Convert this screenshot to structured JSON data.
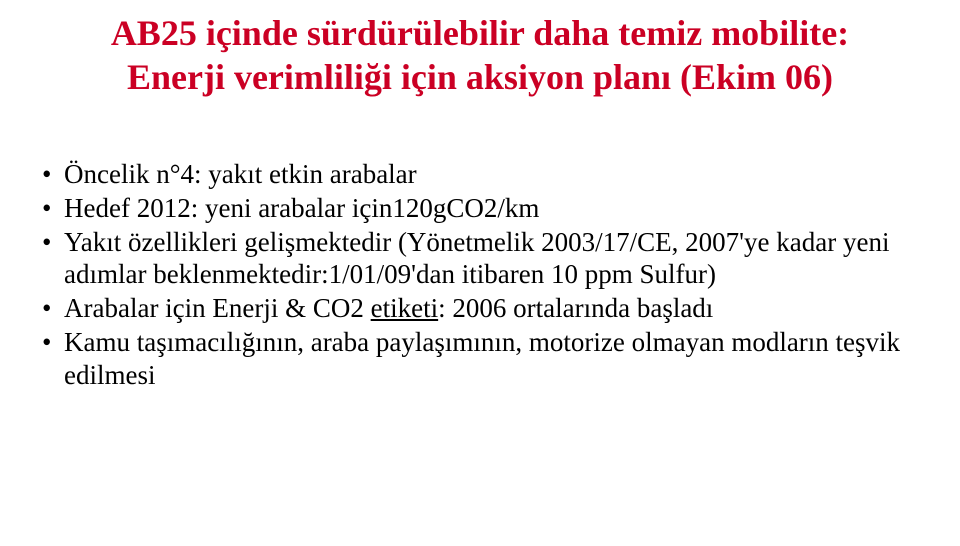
{
  "title": {
    "line1": "AB25 içinde sürdürülebilir daha temiz mobilite:",
    "line2": "Enerji verimliliği için aksiyon planı (Ekim 06)",
    "color": "#cb0024",
    "fontsize_pt": 36
  },
  "bullets": [
    {
      "text": "Öncelik  n°4: yakıt etkin arabalar"
    },
    {
      "text": "Hedef 2012: yeni arabalar için120gCO2/km"
    },
    {
      "text": "Yakıt özellikleri gelişmektedir (Yönetmelik 2003/17/CE, 2007'ye kadar yeni adımlar beklenmektedir:1/01/09'dan itibaren 10 ppm Sulfur)"
    },
    {
      "pre": "Arabalar için Enerji & CO2 ",
      "underlined": "etiketi",
      "post": ": 2006 ortalarında başladı"
    },
    {
      "text": "Kamu taşımacılığının, araba paylaşımının, motorize olmayan modların teşvik edilmesi"
    }
  ],
  "body": {
    "color": "#000000",
    "fontsize_pt": 27
  },
  "background_color": "#ffffff"
}
